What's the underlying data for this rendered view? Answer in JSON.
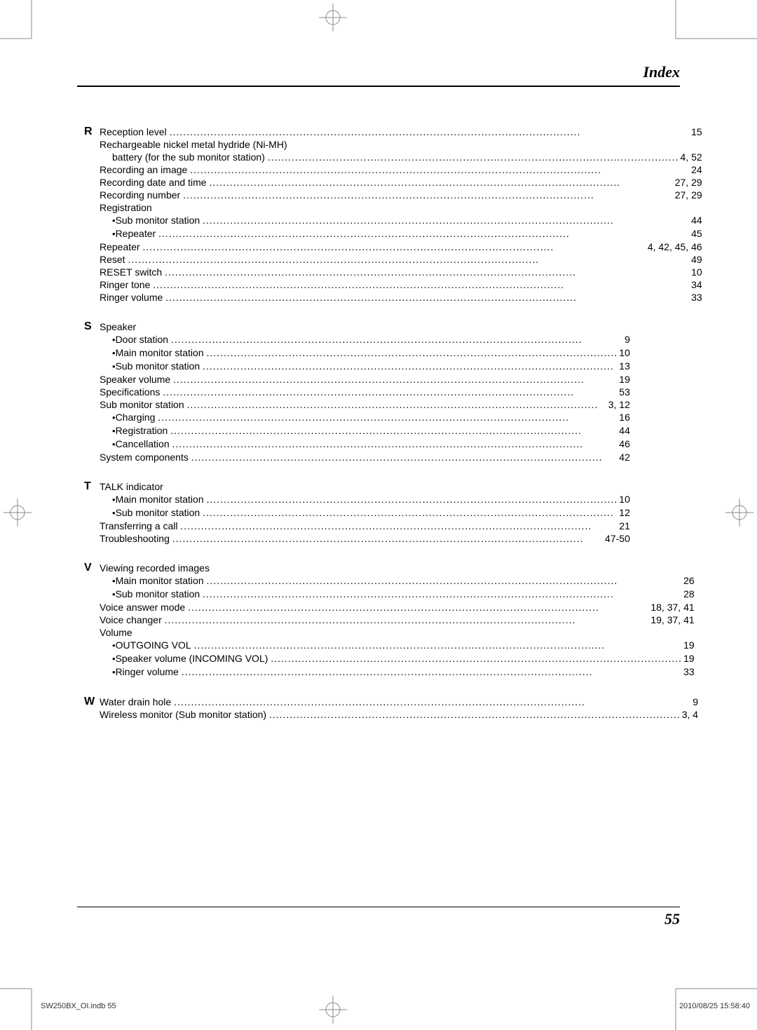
{
  "header": {
    "title": "Index"
  },
  "page_number": "55",
  "footer": {
    "left": "SW250BX_OI.indb   55",
    "right": "2010/08/25   15:58:40"
  },
  "colors": {
    "text": "#000000",
    "background": "#ffffff",
    "rule": "#000000"
  },
  "sections": [
    {
      "letter": "R",
      "items": [
        {
          "label": "Reception level",
          "pages": "15"
        },
        {
          "label": "Rechargeable nickel metal hydride (Ni-MH)",
          "no_pages": true
        },
        {
          "label": "battery (for the sub monitor station)",
          "pages": "4, 52",
          "continuation": true
        },
        {
          "label": "Recording an image",
          "pages": "24"
        },
        {
          "label": "Recording date and time",
          "pages": "27, 29"
        },
        {
          "label": "Recording number",
          "pages": "27, 29"
        },
        {
          "label": "Registration",
          "no_pages": true
        },
        {
          "label": "Sub monitor station",
          "pages": "44",
          "bullet": true
        },
        {
          "label": "Repeater",
          "pages": "45",
          "bullet": true
        },
        {
          "label": "Repeater",
          "pages": "4, 42, 45, 46"
        },
        {
          "label": "Reset",
          "pages": "49"
        },
        {
          "label": "RESET switch",
          "pages": "10"
        },
        {
          "label": "Ringer tone",
          "pages": "34"
        },
        {
          "label": "Ringer volume",
          "pages": "33"
        }
      ]
    },
    {
      "letter": "S",
      "items": [
        {
          "label": "Speaker",
          "no_pages": true
        },
        {
          "label": "Door station",
          "pages": "9",
          "bullet": true
        },
        {
          "label": "Main monitor station",
          "pages": "10",
          "bullet": true
        },
        {
          "label": "Sub monitor station",
          "pages": "13",
          "bullet": true
        },
        {
          "label": "Speaker volume",
          "pages": "19"
        },
        {
          "label": "Specifications",
          "pages": "53"
        },
        {
          "label": "Sub monitor station",
          "pages": "3, 12"
        },
        {
          "label": "Charging",
          "pages": "16",
          "bullet": true
        },
        {
          "label": "Registration",
          "pages": "44",
          "bullet": true
        },
        {
          "label": "Cancellation",
          "pages": "46",
          "bullet": true
        },
        {
          "label": "System components",
          "pages": "42"
        }
      ]
    },
    {
      "letter": "T",
      "items": [
        {
          "label": "TALK indicator",
          "no_pages": true
        },
        {
          "label": "Main monitor station",
          "pages": "10",
          "bullet": true
        },
        {
          "label": "Sub monitor station",
          "pages": "12",
          "bullet": true
        },
        {
          "label": "Transferring a call",
          "pages": "21"
        },
        {
          "label": "Troubleshooting",
          "pages": "47-50"
        }
      ]
    },
    {
      "letter": "V",
      "items": [
        {
          "label": "Viewing recorded images",
          "no_pages": true
        },
        {
          "label": "Main monitor station",
          "pages": "26",
          "bullet": true
        },
        {
          "label": "Sub monitor station",
          "pages": "28",
          "bullet": true
        },
        {
          "label": "Voice answer mode",
          "pages": "18, 37, 41"
        },
        {
          "label": "Voice changer",
          "pages": "19, 37, 41"
        },
        {
          "label": "Volume",
          "no_pages": true
        },
        {
          "label": "OUTGOING VOL",
          "pages": "19",
          "bullet": true
        },
        {
          "label": "Speaker volume (INCOMING VOL)",
          "pages": "19",
          "bullet": true
        },
        {
          "label": "Ringer volume",
          "pages": "33",
          "bullet": true
        }
      ]
    },
    {
      "letter": "W",
      "items": [
        {
          "label": "Water drain hole",
          "pages": "9"
        },
        {
          "label": "Wireless monitor (Sub monitor station)",
          "pages": "3, 4"
        }
      ]
    }
  ]
}
